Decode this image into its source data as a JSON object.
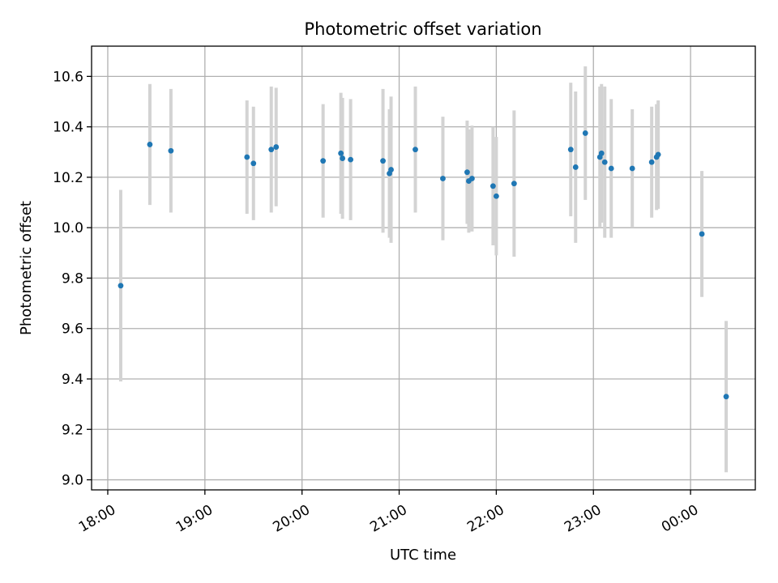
{
  "chart_data": {
    "type": "scatter",
    "title": "Photometric offset variation",
    "xlabel": "UTC time",
    "ylabel": "Photometric offset",
    "xlim": [
      "17:50",
      "00:40"
    ],
    "ylim": [
      8.96,
      10.72
    ],
    "x_ticks": [
      "18:00",
      "19:00",
      "20:00",
      "21:00",
      "22:00",
      "23:00",
      "00:00"
    ],
    "y_ticks": [
      "9.0",
      "9.2",
      "9.4",
      "9.6",
      "9.8",
      "10.0",
      "10.2",
      "10.4",
      "10.6"
    ],
    "grid": true,
    "points": [
      {
        "x": "18:08",
        "y": 9.77,
        "err": 0.38
      },
      {
        "x": "18:26",
        "y": 10.33,
        "err": 0.24
      },
      {
        "x": "18:39",
        "y": 10.305,
        "err": 0.245
      },
      {
        "x": "19:26",
        "y": 10.28,
        "err": 0.225
      },
      {
        "x": "19:30",
        "y": 10.255,
        "err": 0.225
      },
      {
        "x": "19:41",
        "y": 10.31,
        "err": 0.25
      },
      {
        "x": "19:44",
        "y": 10.32,
        "err": 0.235
      },
      {
        "x": "20:13",
        "y": 10.265,
        "err": 0.225
      },
      {
        "x": "20:24",
        "y": 10.295,
        "err": 0.24
      },
      {
        "x": "20:25",
        "y": 10.275,
        "err": 0.24
      },
      {
        "x": "20:30",
        "y": 10.27,
        "err": 0.24
      },
      {
        "x": "20:50",
        "y": 10.265,
        "err": 0.285
      },
      {
        "x": "20:54",
        "y": 10.215,
        "err": 0.255
      },
      {
        "x": "20:55",
        "y": 10.23,
        "err": 0.29
      },
      {
        "x": "21:10",
        "y": 10.31,
        "err": 0.25
      },
      {
        "x": "21:27",
        "y": 10.195,
        "err": 0.245
      },
      {
        "x": "21:42",
        "y": 10.22,
        "err": 0.205
      },
      {
        "x": "21:43",
        "y": 10.185,
        "err": 0.205
      },
      {
        "x": "21:45",
        "y": 10.195,
        "err": 0.21
      },
      {
        "x": "21:58",
        "y": 10.165,
        "err": 0.235
      },
      {
        "x": "22:00",
        "y": 10.125,
        "err": 0.235
      },
      {
        "x": "22:11",
        "y": 10.175,
        "err": 0.29
      },
      {
        "x": "22:46",
        "y": 10.31,
        "err": 0.265
      },
      {
        "x": "22:49",
        "y": 10.24,
        "err": 0.3
      },
      {
        "x": "22:55",
        "y": 10.375,
        "err": 0.265
      },
      {
        "x": "23:04",
        "y": 10.28,
        "err": 0.28
      },
      {
        "x": "23:05",
        "y": 10.295,
        "err": 0.275
      },
      {
        "x": "23:07",
        "y": 10.26,
        "err": 0.3
      },
      {
        "x": "23:11",
        "y": 10.235,
        "err": 0.275
      },
      {
        "x": "23:24",
        "y": 10.235,
        "err": 0.235
      },
      {
        "x": "23:36",
        "y": 10.26,
        "err": 0.22
      },
      {
        "x": "23:39",
        "y": 10.28,
        "err": 0.21
      },
      {
        "x": "23:40",
        "y": 10.29,
        "err": 0.215
      },
      {
        "x": "00:07",
        "y": 9.975,
        "err": 0.25
      },
      {
        "x": "00:22",
        "y": 9.33,
        "err": 0.3
      }
    ]
  }
}
